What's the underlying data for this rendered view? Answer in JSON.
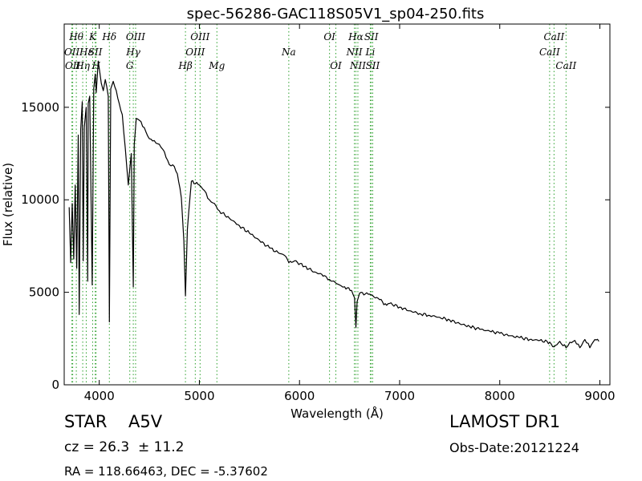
{
  "chart_data": {
    "type": "line",
    "title": "spec-56286-GAC118S05V1_sp04-250.fits",
    "xlabel": "Wavelength (Å)",
    "ylabel": "Flux (relative)",
    "xlim": [
      3650,
      9100
    ],
    "ylim": [
      0,
      19500
    ],
    "xticks": [
      4000,
      5000,
      6000,
      7000,
      8000,
      9000
    ],
    "yticks": [
      0,
      5000,
      10000,
      15000
    ],
    "xtick_labels": [
      "4000",
      "5000",
      "6000",
      "7000",
      "8000",
      "9000"
    ],
    "ytick_labels": [
      "0",
      "5000",
      "10000",
      "15000"
    ],
    "grid": false,
    "line_color": "#000000",
    "marker_color": "#2ca02c",
    "spectrum": {
      "x": [
        3700,
        3715,
        3730,
        3745,
        3760,
        3775,
        3790,
        3800,
        3815,
        3830,
        3840,
        3850,
        3870,
        3885,
        3890,
        3905,
        3930,
        3945,
        3960,
        3970,
        3990,
        4020,
        4040,
        4060,
        4090,
        4101,
        4115,
        4140,
        4170,
        4200,
        4230,
        4260,
        4290,
        4320,
        4330,
        4340,
        4350,
        4370,
        4400,
        4450,
        4500,
        4550,
        4600,
        4650,
        4700,
        4750,
        4780,
        4820,
        4845,
        4861,
        4880,
        4920,
        5000,
        5050,
        5100,
        5150,
        5200,
        5300,
        5400,
        5500,
        5600,
        5700,
        5800,
        5850,
        5893,
        5950,
        6050,
        6150,
        6250,
        6300,
        6400,
        6450,
        6520,
        6550,
        6563,
        6575,
        6600,
        6700,
        6800,
        6870,
        6900,
        7000,
        7100,
        7200,
        7300,
        7400,
        7500,
        7600,
        7700,
        7800,
        7900,
        8000,
        8100,
        8200,
        8300,
        8400,
        8500,
        8542,
        8600,
        8662,
        8700,
        8750,
        8800,
        8850,
        8900,
        8950,
        8990
      ],
      "y": [
        9600,
        6600,
        9800,
        6800,
        10800,
        6300,
        13500,
        3800,
        13800,
        15300,
        6700,
        13900,
        15000,
        5600,
        15200,
        15600,
        5400,
        16000,
        16800,
        15800,
        17500,
        16300,
        15900,
        16500,
        15600,
        3400,
        16000,
        16400,
        15900,
        15200,
        14600,
        12800,
        10800,
        12500,
        9000,
        5300,
        13000,
        14400,
        14300,
        13900,
        13300,
        13200,
        13000,
        12600,
        11900,
        11800,
        11400,
        10100,
        7800,
        4800,
        8400,
        11000,
        10800,
        10500,
        10000,
        9800,
        9400,
        9000,
        8600,
        8200,
        7800,
        7400,
        7100,
        7000,
        6600,
        6700,
        6400,
        6100,
        5900,
        5700,
        5400,
        5300,
        5100,
        4700,
        3100,
        4500,
        4950,
        4900,
        4600,
        4300,
        4400,
        4200,
        4000,
        3850,
        3750,
        3650,
        3500,
        3300,
        3150,
        3000,
        2900,
        2780,
        2650,
        2550,
        2450,
        2400,
        2300,
        2050,
        2350,
        2000,
        2300,
        2400,
        2000,
        2450,
        2000,
        2450,
        2350
      ]
    },
    "line_markers": [
      {
        "x": 3727,
        "label": "OII",
        "level": 2
      },
      {
        "x": 3735,
        "label": "OII",
        "level": 3
      },
      {
        "x": 3771,
        "label": "Hθ",
        "level": 1
      },
      {
        "x": 3835,
        "label": "Hη",
        "level": 3
      },
      {
        "x": 3870,
        "label": "Hε",
        "level": 2
      },
      {
        "x": 3934,
        "label": "K",
        "level": 1
      },
      {
        "x": 3960,
        "label": "SII",
        "level": 2
      },
      {
        "x": 3968,
        "label": "H",
        "level": 3
      },
      {
        "x": 4101,
        "label": "Hδ",
        "level": 1
      },
      {
        "x": 4305,
        "label": "G",
        "level": 3
      },
      {
        "x": 4340,
        "label": "Hγ",
        "level": 2
      },
      {
        "x": 4363,
        "label": "OIII",
        "level": 1
      },
      {
        "x": 4861,
        "label": "Hβ",
        "level": 3
      },
      {
        "x": 4959,
        "label": "OIII",
        "level": 2
      },
      {
        "x": 5007,
        "label": "OIII",
        "level": 1
      },
      {
        "x": 5175,
        "label": "Mg",
        "level": 3
      },
      {
        "x": 5893,
        "label": "Na",
        "level": 2
      },
      {
        "x": 6300,
        "label": "OI",
        "level": 1
      },
      {
        "x": 6363,
        "label": "OI",
        "level": 3
      },
      {
        "x": 6548,
        "label": "NII",
        "level": 2
      },
      {
        "x": 6563,
        "label": "Hα",
        "level": 1
      },
      {
        "x": 6583,
        "label": "NII",
        "level": 3
      },
      {
        "x": 6717,
        "label": "SII",
        "level": 1
      },
      {
        "x": 6707,
        "label": "Li",
        "level": 2
      },
      {
        "x": 6731,
        "label": "SII",
        "level": 3
      },
      {
        "x": 8498,
        "label": "CaII",
        "level": 2
      },
      {
        "x": 8542,
        "label": "CaII",
        "level": 1
      },
      {
        "x": 8662,
        "label": "CaII",
        "level": 3
      }
    ]
  },
  "info": {
    "object_class": "STAR",
    "subclass": "A5V",
    "redshift": "cz = 26.3  ± 11.2",
    "coordinates": "RA = 118.66463, DEC = -5.37602",
    "survey": "LAMOST DR1",
    "obs_date": "Obs-Date:20121224"
  }
}
